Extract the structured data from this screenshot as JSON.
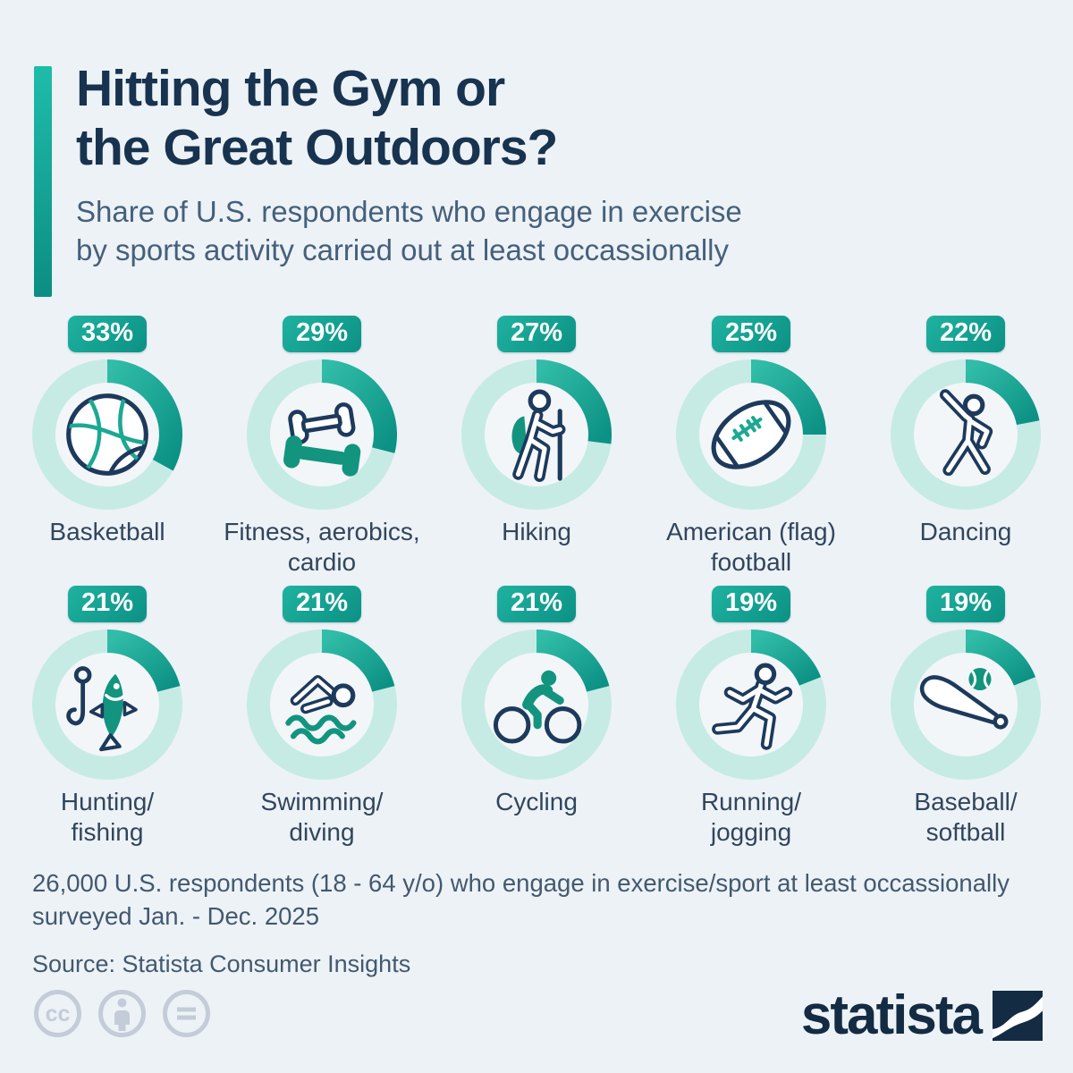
{
  "header": {
    "title": "Hitting the Gym or\nthe Great Outdoors?",
    "subtitle": "Share of U.S. respondents who engage in exercise\nby sports activity carried out at least occassionally"
  },
  "chart_data": {
    "type": "donut-grid",
    "unit": "%",
    "value_range": [
      0,
      100
    ],
    "arc_start": "12 o'clock, clockwise",
    "items": [
      {
        "label": "Basketball",
        "value": 33,
        "icon": "basketball-icon"
      },
      {
        "label": "Fitness, aerobics,\ncardio",
        "value": 29,
        "icon": "dumbbells-icon"
      },
      {
        "label": "Hiking",
        "value": 27,
        "icon": "hiker-icon"
      },
      {
        "label": "American (flag)\nfootball",
        "value": 25,
        "icon": "american-football-icon"
      },
      {
        "label": "Dancing",
        "value": 22,
        "icon": "dancer-icon"
      },
      {
        "label": "Hunting/\nfishing",
        "value": 21,
        "icon": "fishing-icon"
      },
      {
        "label": "Swimming/\ndiving",
        "value": 21,
        "icon": "swimmer-icon"
      },
      {
        "label": "Cycling",
        "value": 21,
        "icon": "cyclist-icon"
      },
      {
        "label": "Running/\njogging",
        "value": 19,
        "icon": "runner-icon"
      },
      {
        "label": "Baseball/\nsoftball",
        "value": 19,
        "icon": "baseball-icon"
      }
    ]
  },
  "footer": {
    "note": "26,000 U.S. respondents (18 - 64 y/o) who engage in exercise/sport at least occassionally\nsurveyed Jan. - Dec. 2025",
    "source": "Source: Statista Consumer Insights"
  },
  "branding": {
    "logo_text": "statista",
    "license_icons": [
      "cc-icon",
      "attribution-person-icon",
      "equal-no-derivatives-icon"
    ]
  },
  "colors": {
    "background": "#edf2f7",
    "title": "#17334f",
    "subtitle": "#45607b",
    "teal_dark": "#0c9184",
    "teal_bright": "#31bda8",
    "ring_light": "#c6ebe5",
    "donut_hole": "#f2f6f9",
    "icon_navy": "#1d3a5c",
    "icon_teal": "#12947f",
    "icon_teal_line": "#1ca893",
    "license_gray": "#c3ccd7",
    "logo_navy": "#132c43"
  }
}
